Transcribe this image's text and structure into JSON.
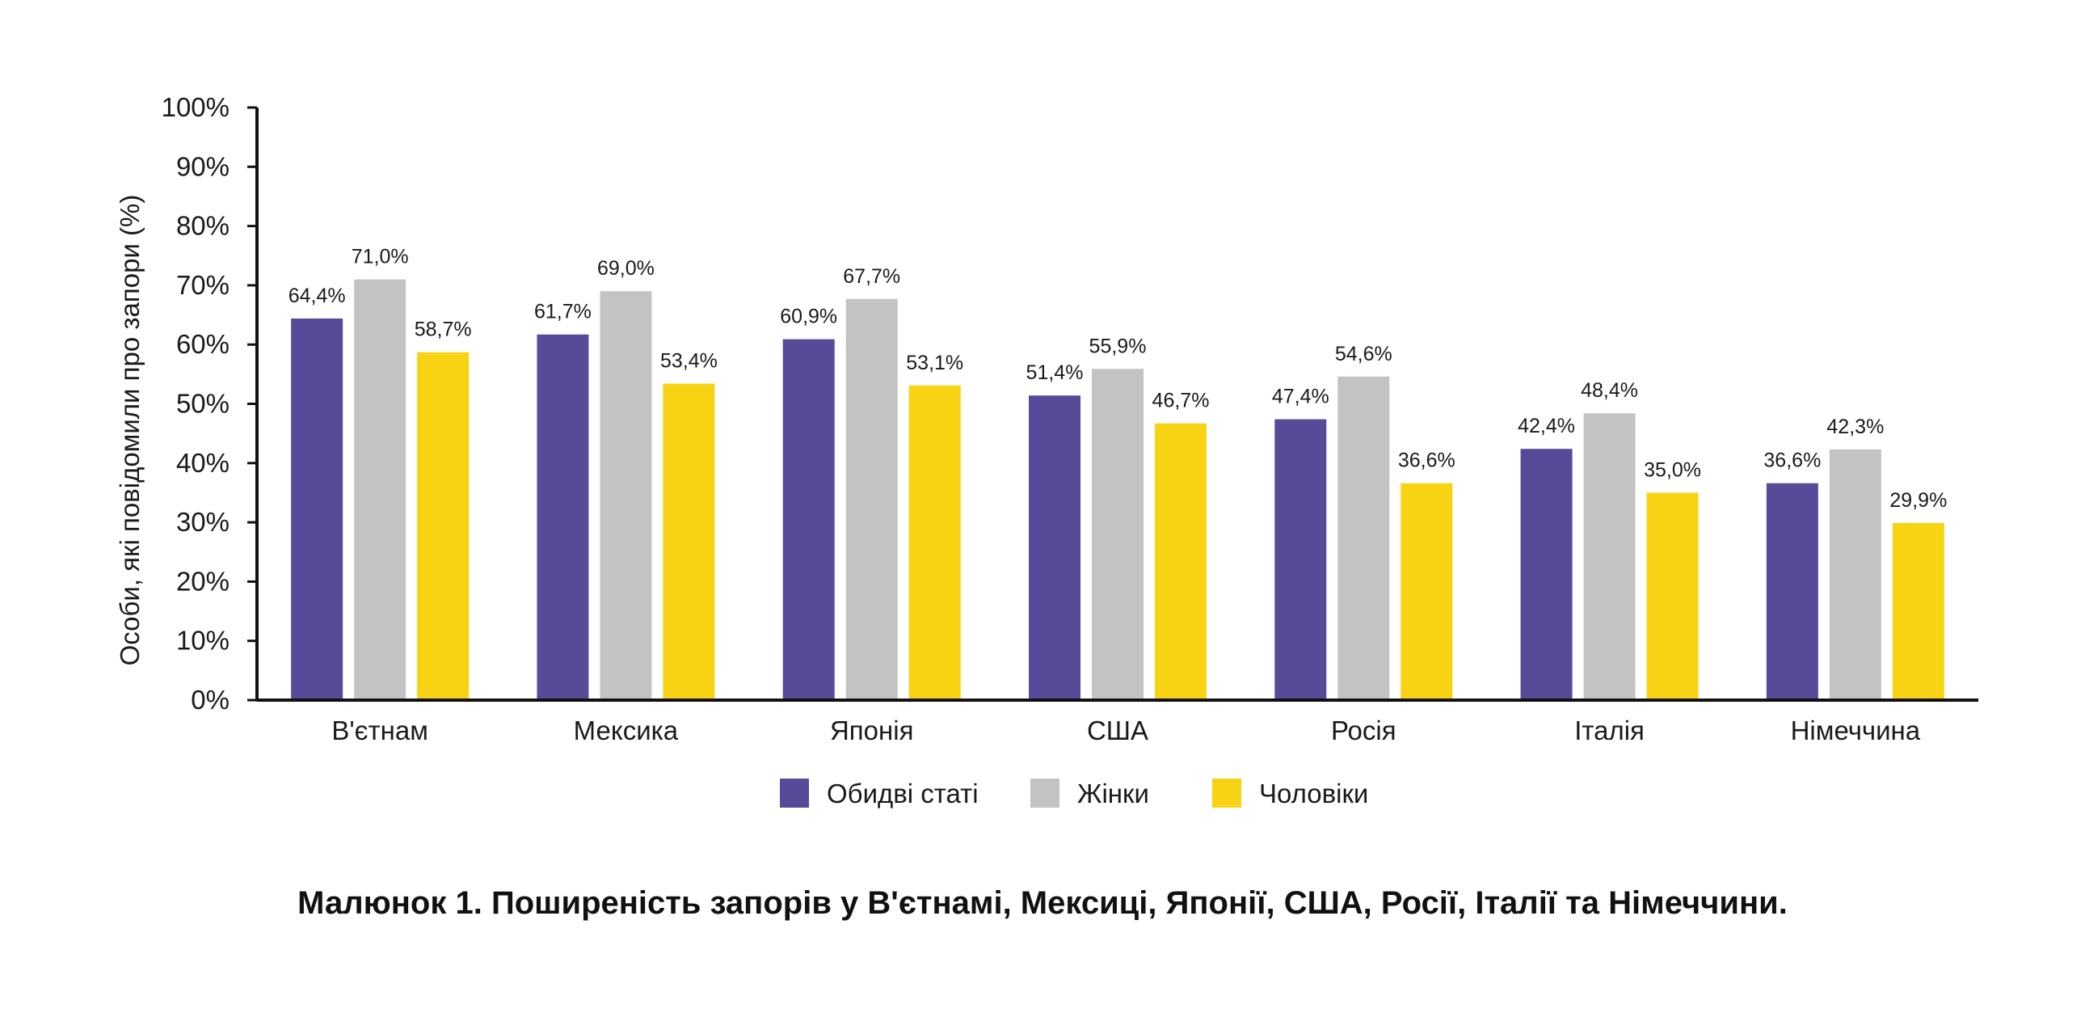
{
  "colors": {
    "both": "#574a99",
    "women": "#c3c3c3",
    "men": "#f7d313",
    "axis": "#111111"
  },
  "caption": "Малюнок 1. Поширеність запорів у В'єтнамі, Мексиці, Японії, США, Росії, Італії та Німеччини.",
  "chart_data": {
    "type": "bar",
    "title": "",
    "xlabel": "",
    "ylabel": "Особи, які повідомили про запори (%)",
    "ylim": [
      0,
      100
    ],
    "yticks": [
      "0%",
      "10%",
      "20%",
      "30%",
      "40%",
      "50%",
      "60%",
      "70%",
      "80%",
      "90%",
      "100%"
    ],
    "grid": false,
    "legend_position": "bottom",
    "categories": [
      "В'єтнам",
      "Мексика",
      "Японія",
      "США",
      "Росія",
      "Італія",
      "Німеччина"
    ],
    "series": [
      {
        "name": "Обидві статі",
        "color": "#574a99",
        "values": [
          64.4,
          61.7,
          60.9,
          51.4,
          47.4,
          42.4,
          36.6
        ],
        "labels": [
          "64,4%",
          "61,7%",
          "60,9%",
          "51,4%",
          "47,4%",
          "42,4%",
          "36,6%"
        ]
      },
      {
        "name": "Жінки",
        "color": "#c3c3c3",
        "values": [
          71.0,
          69.0,
          67.7,
          55.9,
          54.6,
          48.4,
          42.3
        ],
        "labels": [
          "71,0%",
          "69,0%",
          "67,7%",
          "55,9%",
          "54,6%",
          "48,4%",
          "42,3%"
        ]
      },
      {
        "name": "Чоловіки",
        "color": "#f7d313",
        "values": [
          58.7,
          53.4,
          53.1,
          46.7,
          36.6,
          35.0,
          29.9
        ],
        "labels": [
          "58,7%",
          "53,4%",
          "53,1%",
          "46,7%",
          "36,6%",
          "35,0%",
          "29,9%"
        ]
      }
    ]
  }
}
